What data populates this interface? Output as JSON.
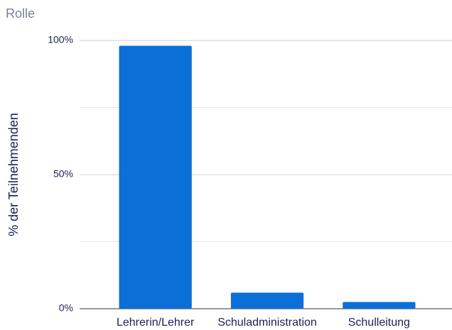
{
  "chart_data": {
    "type": "bar",
    "title": "Rolle",
    "y_label": "% der Teilnehmenden",
    "categories": [
      "Lehrerin/Lehrer",
      "Schuladministration",
      "Schulleitung"
    ],
    "values": [
      98,
      6,
      2.5
    ],
    "color": "#0b6fd8",
    "ylim": [
      0,
      100
    ],
    "yticks": [
      {
        "value": 0,
        "label": "0%"
      },
      {
        "value": 50,
        "label": "50%"
      },
      {
        "value": 100,
        "label": "100%"
      }
    ],
    "yminorticks": [
      25,
      75
    ],
    "grid": true
  }
}
